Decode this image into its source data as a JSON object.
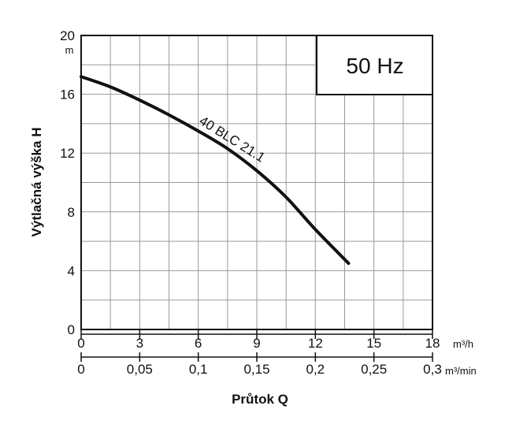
{
  "chart_data": {
    "type": "line",
    "title": "",
    "frequency_badge": "50 Hz",
    "ylabel": "Výtlačná výška H",
    "y_unit": "m",
    "xlabel": "Průtok Q",
    "x_unit_primary": "m³/h",
    "x_unit_secondary": "m³/min",
    "xlim": [
      0,
      18
    ],
    "ylim": [
      0,
      20
    ],
    "x_ticks": [
      "0",
      "3",
      "6",
      "9",
      "12",
      "15",
      "18"
    ],
    "x_ticks_secondary": [
      "0",
      "0,05",
      "0,1",
      "0,15",
      "0,2",
      "0,25",
      "0,3"
    ],
    "y_ticks": [
      "0",
      "4",
      "8",
      "12",
      "16",
      "20"
    ],
    "grid": true,
    "series": [
      {
        "name": "40 BLC 21.1",
        "x": [
          0,
          1.5,
          3,
          4.5,
          6,
          7.5,
          9,
          10.5,
          12,
          13.7
        ],
        "y": [
          17.2,
          16.5,
          15.6,
          14.6,
          13.5,
          12.3,
          10.8,
          9.0,
          6.8,
          4.5
        ]
      }
    ]
  }
}
